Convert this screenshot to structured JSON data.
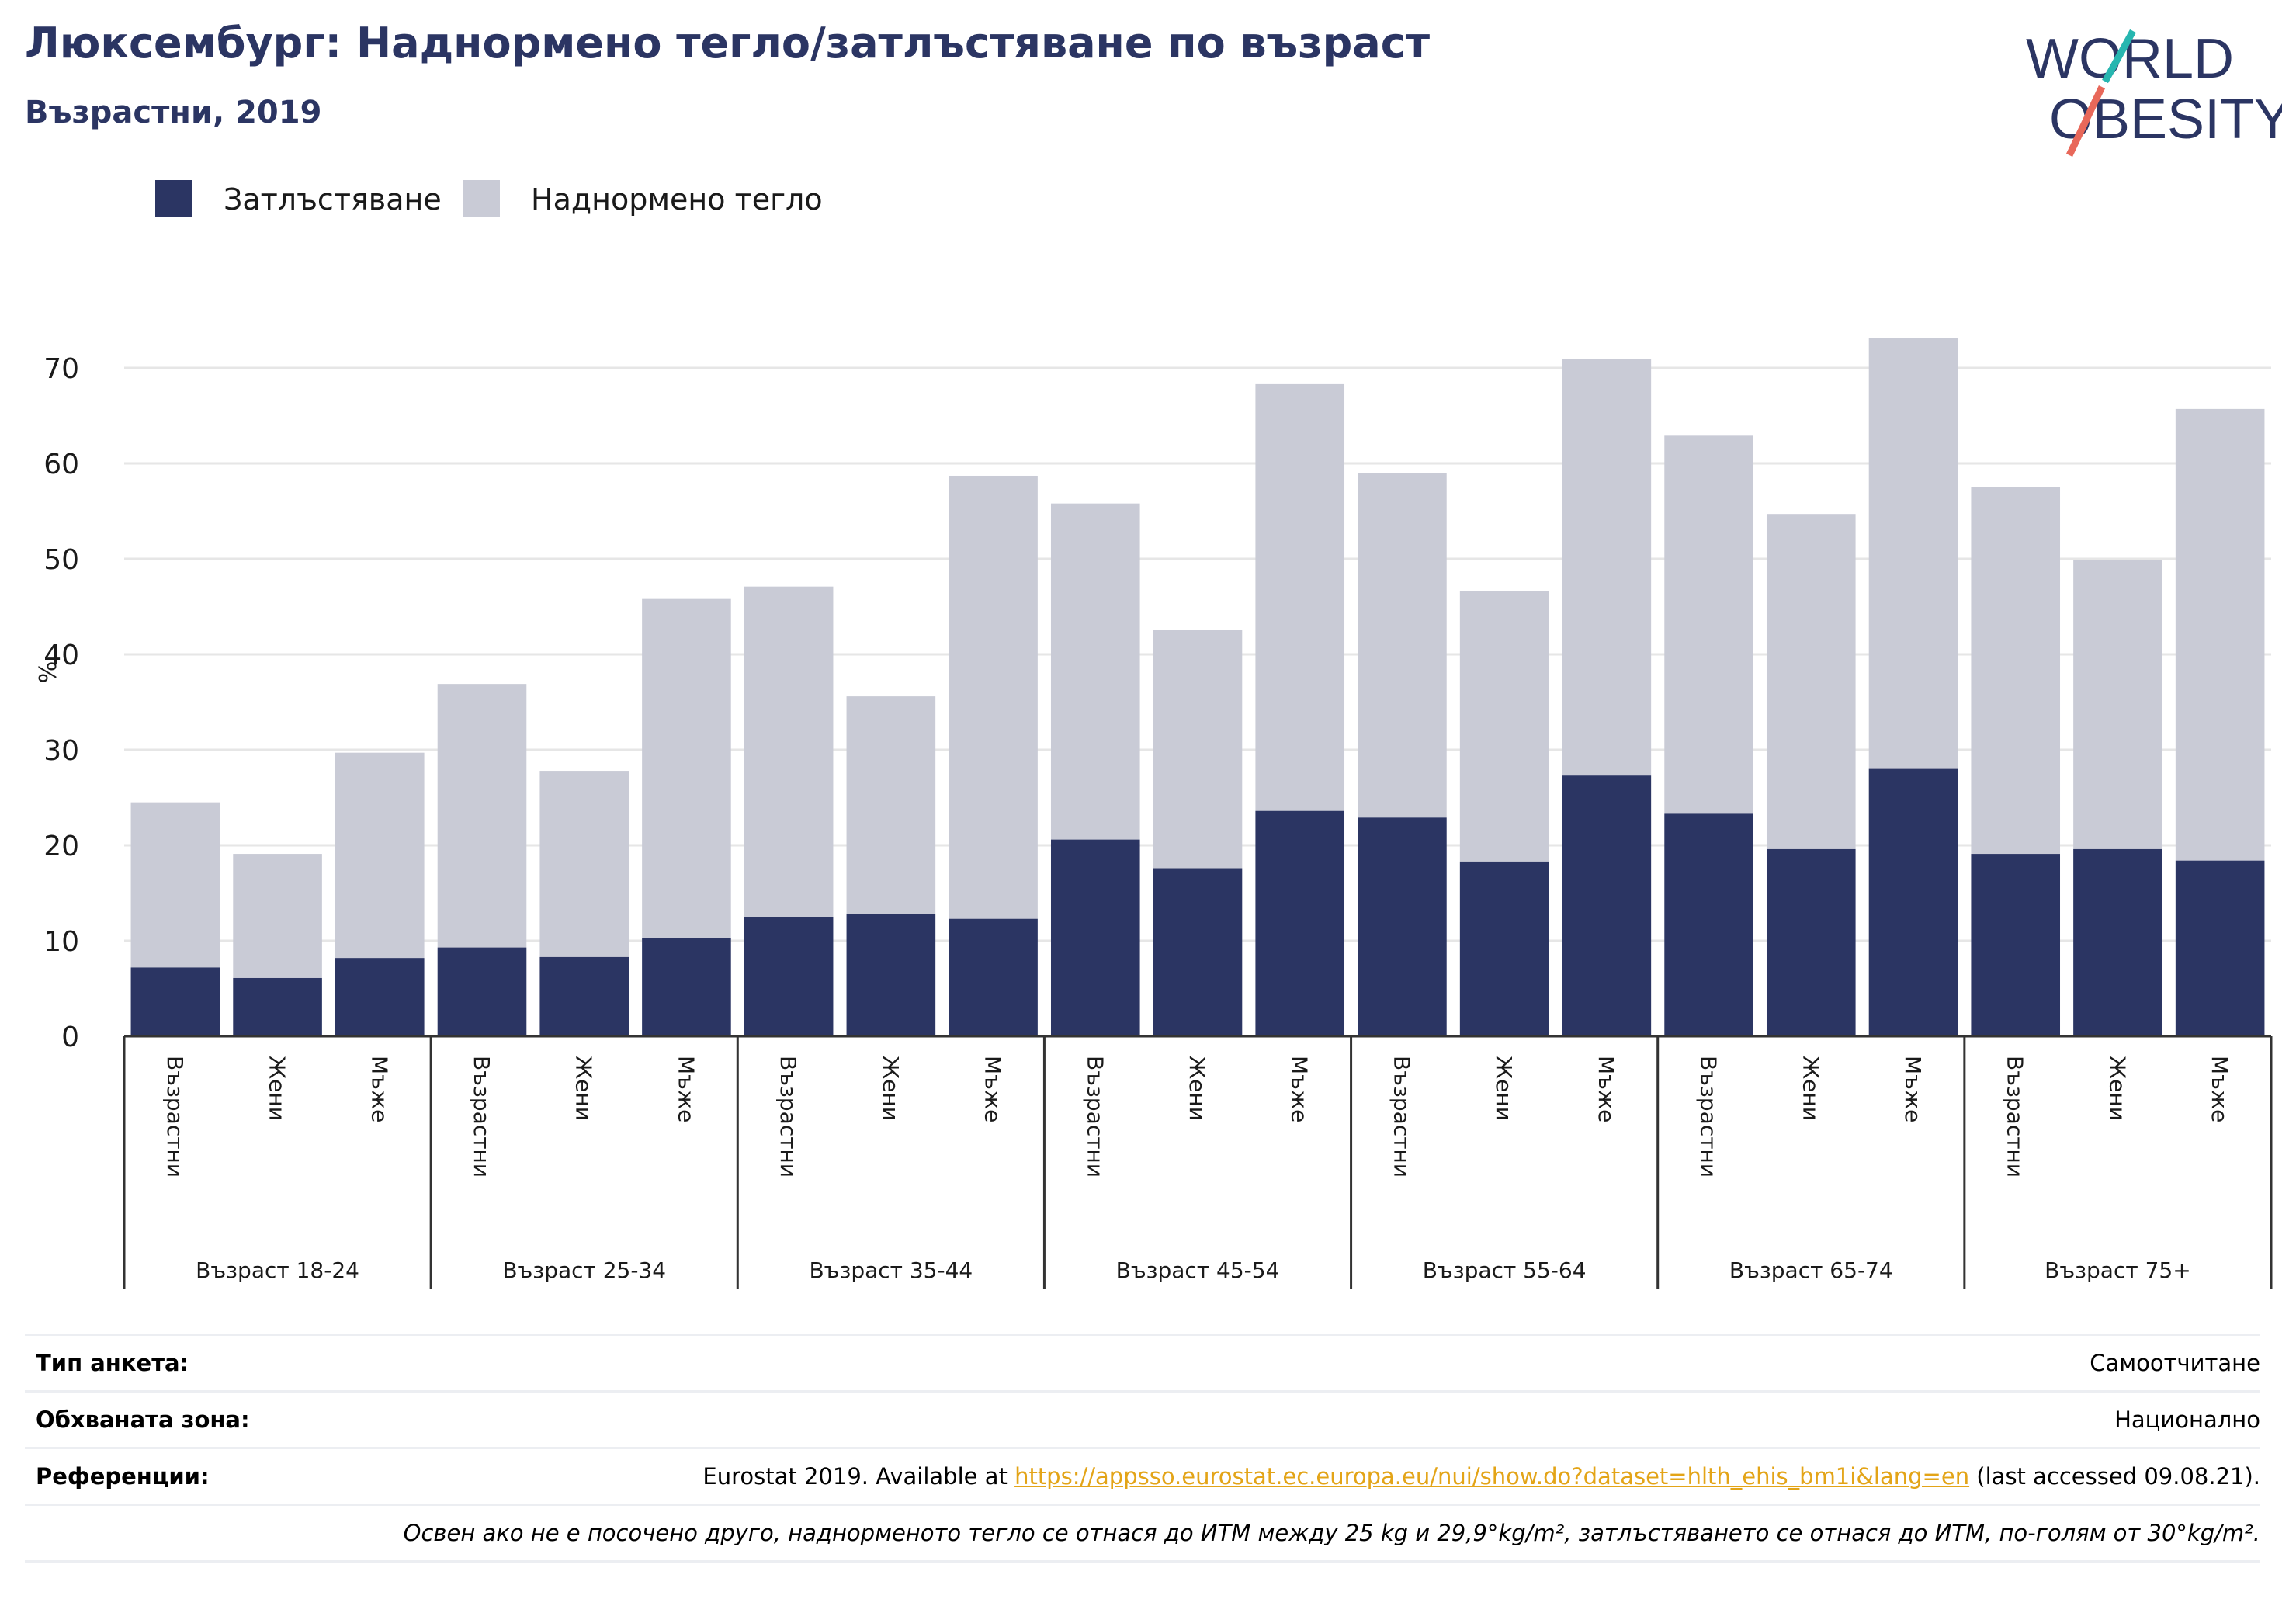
{
  "header": {
    "title": "Люксембург: Наднормено тегло/затлъстяване по възраст",
    "subtitle": "Възрастни, 2019"
  },
  "logo": {
    "line1": "WORLD",
    "line2": "OBESITY"
  },
  "colors": {
    "obesity": "#2b3563",
    "overweight": "#c9cbd6",
    "logo_text": "#2b3563",
    "logo_teal": "#27b6b0",
    "logo_coral": "#e8685a",
    "link": "#e3a417"
  },
  "legend": [
    {
      "label": "Затлъстяване",
      "color": "#2b3563"
    },
    {
      "label": "Наднормено тегло",
      "color": "#c9cbd6"
    }
  ],
  "chart_data": {
    "type": "bar",
    "stacked": true,
    "ylabel": "%",
    "ylim": [
      0,
      75
    ],
    "yticks": [
      0,
      10,
      20,
      30,
      40,
      50,
      60,
      70
    ],
    "grid": true,
    "legend_position": "top-left",
    "groups": [
      "Възраст 18-24",
      "Възраст 25-34",
      "Възраст 35-44",
      "Възраст 45-54",
      "Възраст 55-64",
      "Възраст 65-74",
      "Възраст 75+"
    ],
    "subcategories": [
      "Възрастни",
      "Жени",
      "Мъже"
    ],
    "series": [
      {
        "name": "Затлъстяване",
        "values": [
          7.2,
          6.1,
          8.2,
          9.3,
          8.3,
          10.3,
          12.5,
          12.8,
          12.3,
          20.6,
          17.6,
          23.6,
          22.9,
          18.3,
          27.3,
          23.3,
          19.6,
          28.0,
          19.1,
          19.6,
          18.4
        ]
      },
      {
        "name": "Наднормено тегло",
        "values": [
          17.3,
          13.0,
          21.5,
          27.6,
          19.5,
          35.5,
          34.6,
          22.8,
          46.4,
          35.2,
          25.0,
          44.7,
          36.1,
          28.3,
          43.6,
          39.6,
          35.1,
          45.1,
          38.4,
          30.3,
          47.3
        ]
      }
    ]
  },
  "info": [
    {
      "key": "Тип анкета:",
      "value": "Самоотчитане"
    },
    {
      "key": "Обхваната зона:",
      "value": "Национално"
    },
    {
      "key": "Референции:",
      "value_pre": "Eurostat 2019. Available at ",
      "link": "https://appsso.eurostat.ec.europa.eu/nui/show.do?dataset=hlth_ehis_bm1i&lang=en",
      "value_post": " (last accessed 09.08.21)."
    },
    {
      "note": "Освен ако не е посочено друго, наднорменото тегло се отнася до ИТМ между 25 kg и 29,9°kg/m², затлъстяването се отнася до ИТМ, по-голям от 30°kg/m²."
    }
  ]
}
